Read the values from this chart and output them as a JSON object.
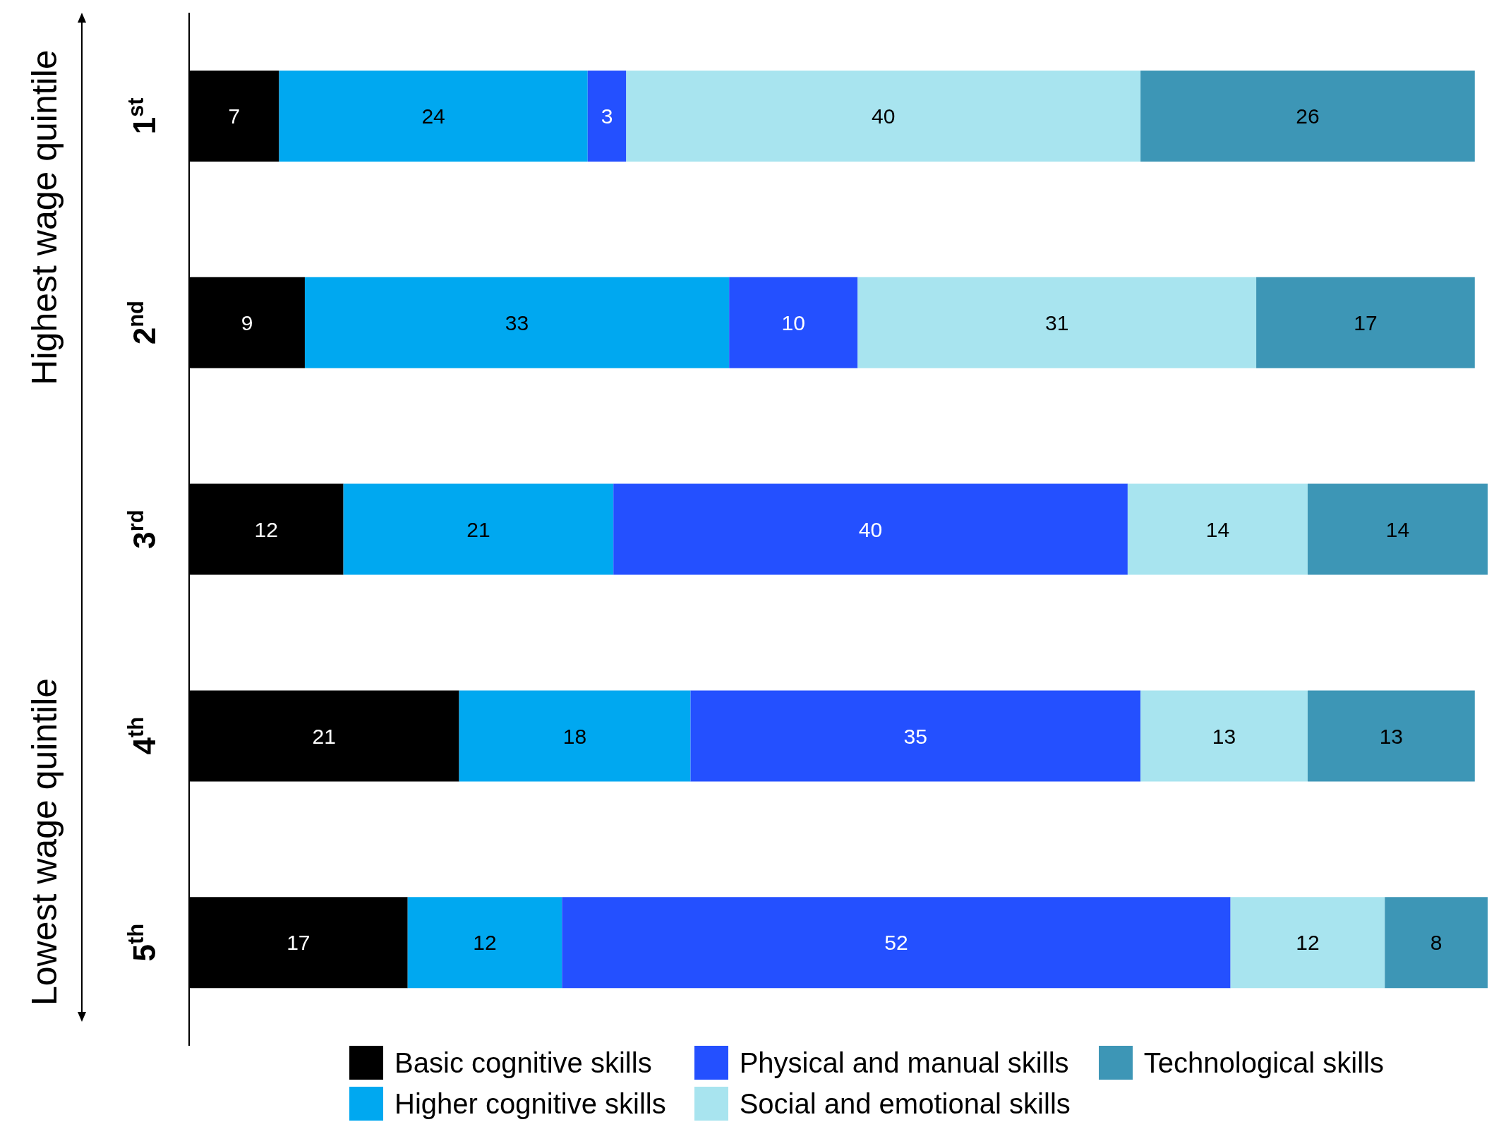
{
  "chart_data": {
    "type": "bar",
    "orientation": "horizontal",
    "stacked": true,
    "categories": [
      "1$^{st}$",
      "2$^{nd}$",
      "3$^{rd}$",
      "4$^{th}$",
      "5$^{th}$"
    ],
    "series": [
      {
        "name": "Basic cognitive skills",
        "color": "#000000",
        "values": [
          7,
          9,
          12,
          21,
          17
        ]
      },
      {
        "name": "Higher cognitive skills",
        "color": "#00a8f0",
        "values": [
          24,
          33,
          21,
          18,
          12
        ]
      },
      {
        "name": "Physical and manual skills",
        "color": "#2450ff",
        "values": [
          3,
          10,
          40,
          35,
          52
        ]
      },
      {
        "name": "Social and emotional skills",
        "color": "#a8e4ef",
        "values": [
          40,
          31,
          14,
          13,
          12
        ]
      },
      {
        "name": "Technological skills",
        "color": "#3d96b6",
        "values": [
          26,
          17,
          14,
          13,
          8
        ]
      }
    ],
    "xlim": [
      0,
      101
    ],
    "tick_labels": "y",
    "data_labels": true,
    "legend": "bottom",
    "grid": false,
    "annotations": [
      "Highest wage quintile",
      "Lowest wage quintile"
    ]
  }
}
